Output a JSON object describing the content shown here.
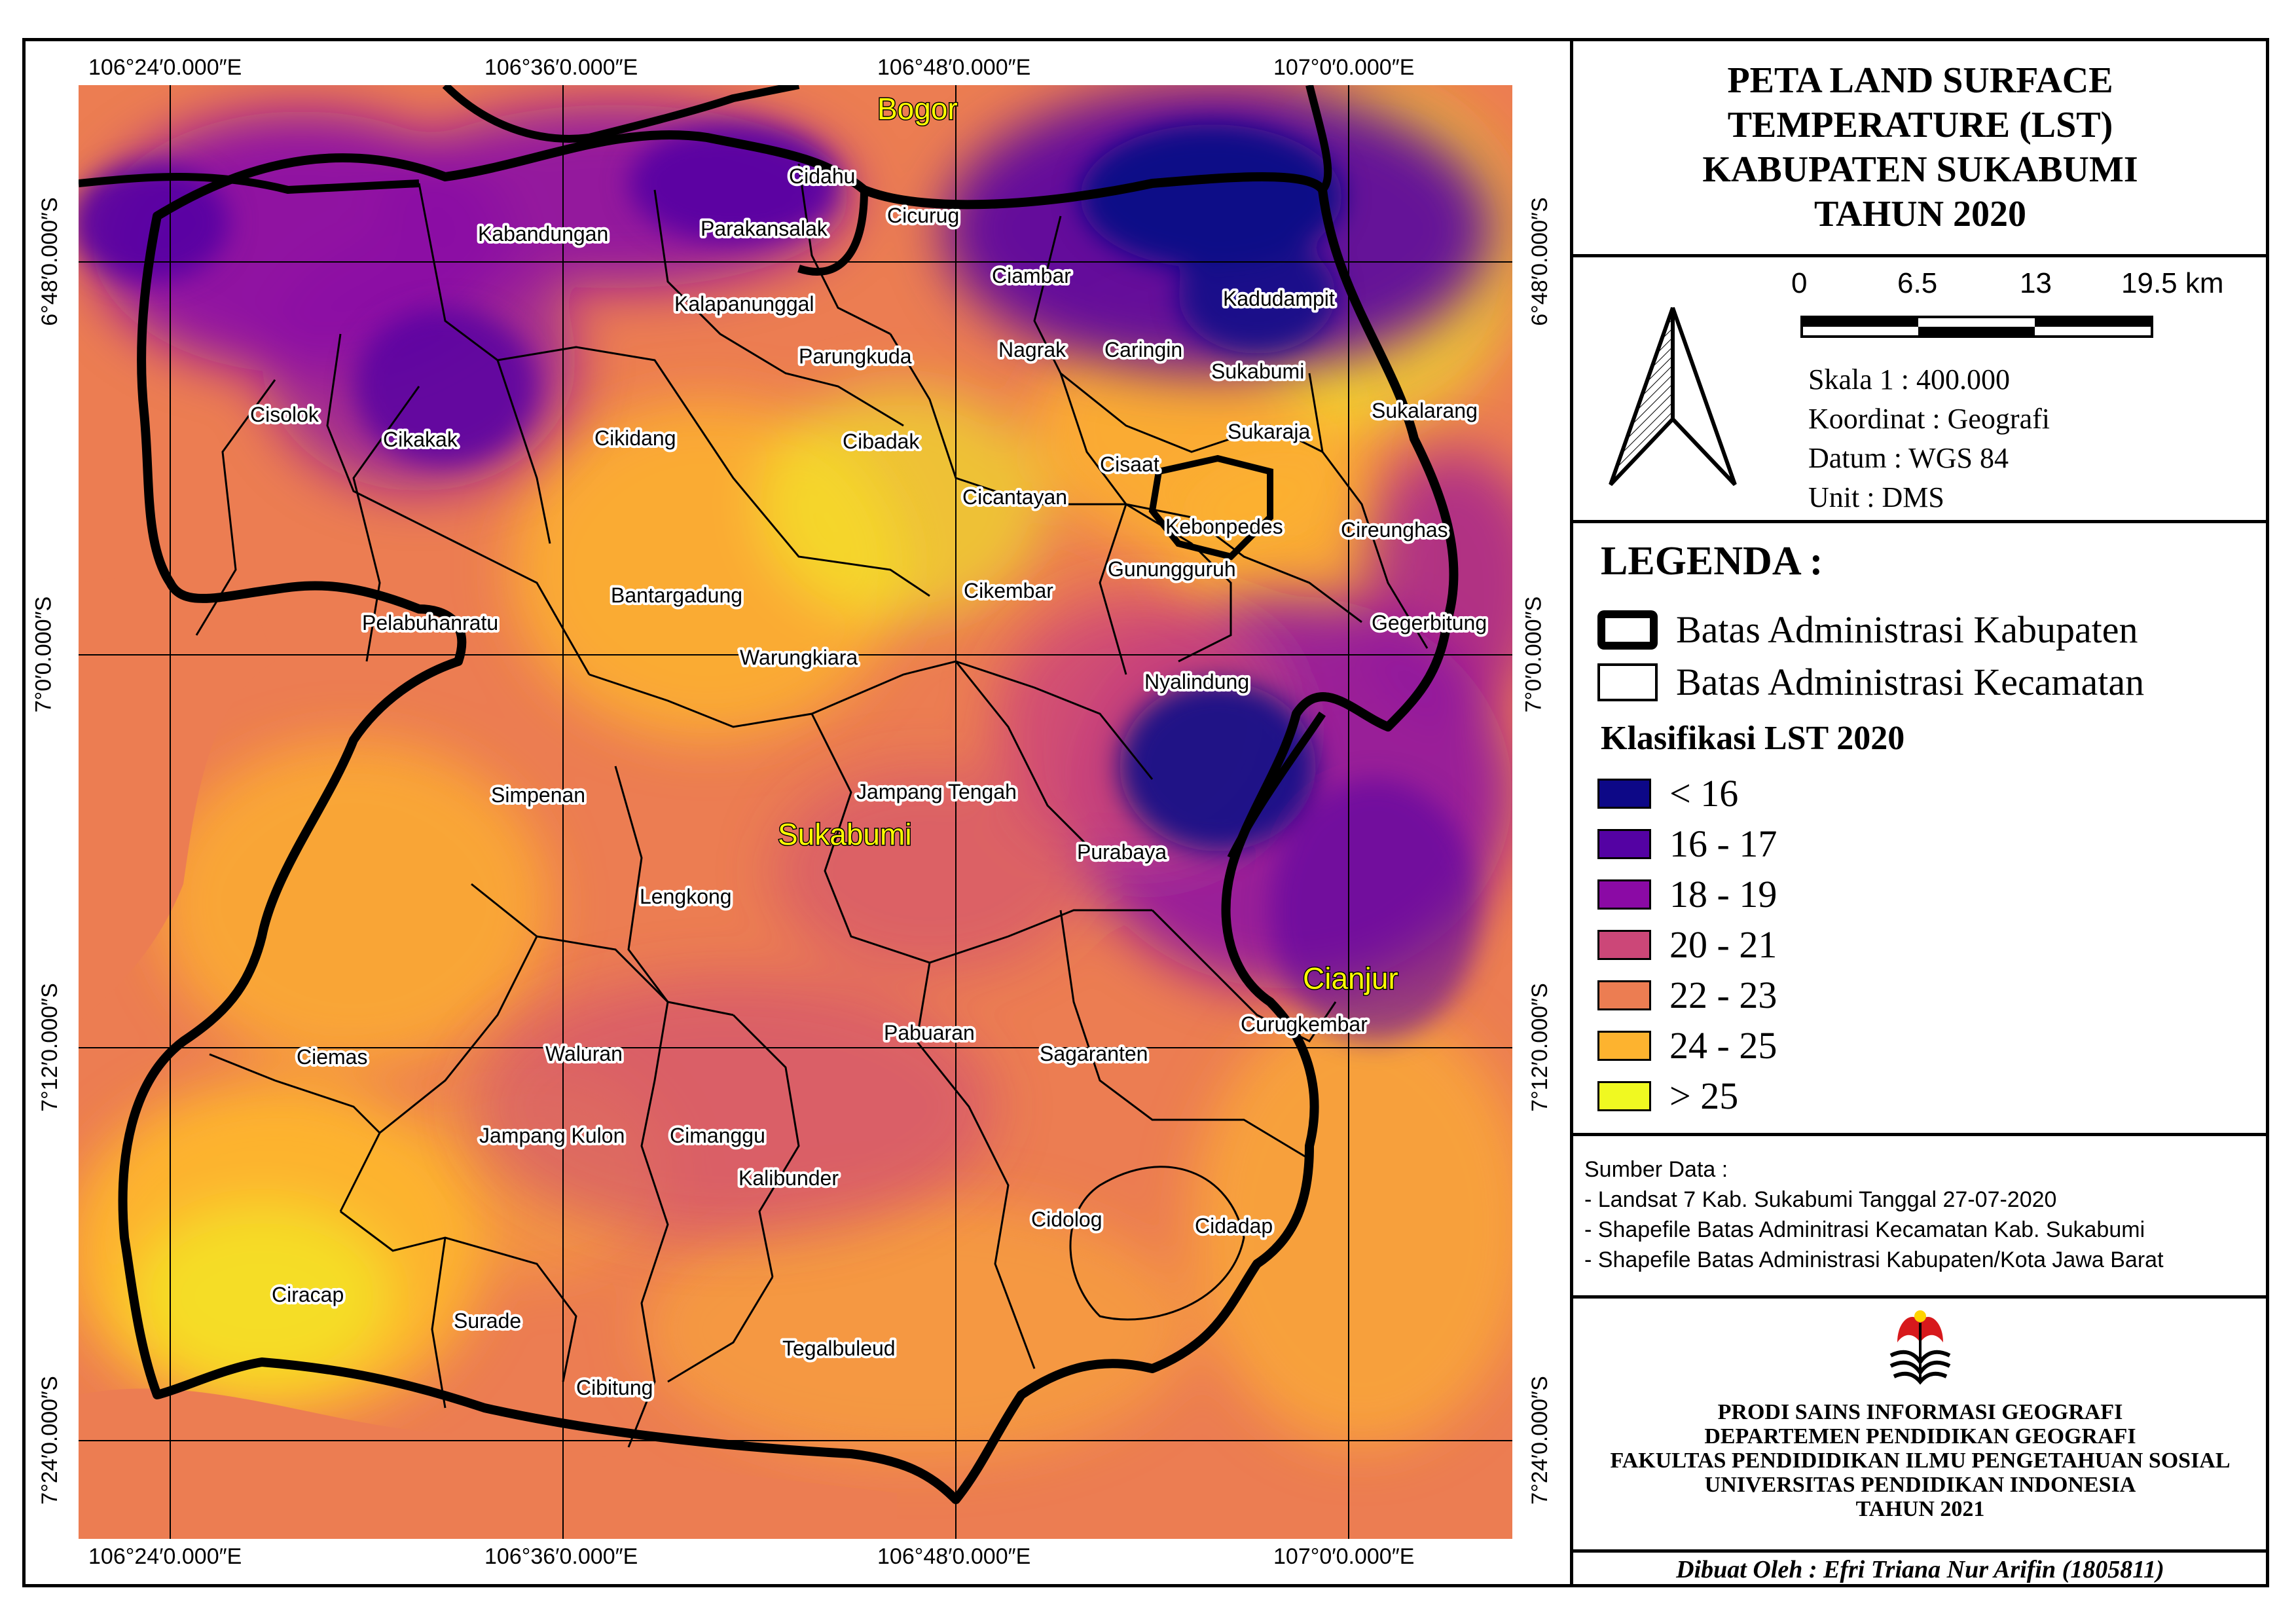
{
  "title": [
    "PETA LAND SURFACE",
    "TEMPERATURE (LST)",
    "KABUPATEN SUKABUMI",
    "TAHUN 2020"
  ],
  "coords": {
    "top": [
      "106°24′0.000″E",
      "106°36′0.000″E",
      "106°48′0.000″E",
      "107°0′0.000″E"
    ],
    "bottom": [
      "106°24′0.000″E",
      "106°36′0.000″E",
      "106°48′0.000″E",
      "107°0′0.000″E"
    ],
    "left": [
      "6°48′0.000″S",
      "7°0′0.000″S",
      "7°12′0.000″S",
      "7°24′0.000″S"
    ],
    "right": [
      "6°48′0.000″S",
      "7°0′0.000″S",
      "7°12′0.000″S",
      "7°24′0.000″S"
    ]
  },
  "scale_bar": {
    "ticks": [
      "0",
      "6.5",
      "13",
      "19.5 km"
    ]
  },
  "map_info": [
    "Skala 1 : 400.000",
    "Koordinat : Geografi",
    "Datum : WGS 84",
    "Unit : DMS"
  ],
  "legend": {
    "title": "LEGENDA :",
    "boundaries": [
      "Batas Administrasi Kabupaten",
      "Batas Administrasi Kecamatan"
    ],
    "lst_title": "Klasifikasi LST 2020",
    "classes": [
      {
        "label": "< 16",
        "color": "#0d0887"
      },
      {
        "label": "16 - 17",
        "color": "#5402a3"
      },
      {
        "label": "18 - 19",
        "color": "#8b0aa5"
      },
      {
        "label": "20 - 21",
        "color": "#cc4778"
      },
      {
        "label": "22 - 23",
        "color": "#ec7d52"
      },
      {
        "label": "24 - 25",
        "color": "#fdb32f"
      },
      {
        "label": "> 25",
        "color": "#f0f921"
      }
    ]
  },
  "sources": {
    "title": "Sumber Data :",
    "items": [
      "- Landsat 7 Kab. Sukabumi Tanggal 27-07-2020",
      "- Shapefile Batas Adminitrasi Kecamatan Kab. Sukabumi",
      "- Shapefile Batas Administrasi Kabupaten/Kota Jawa Barat"
    ]
  },
  "institution": [
    "PRODI SAINS INFORMASI GEOGRAFI",
    "DEPARTEMEN PENDIDIKAN GEOGRAFI",
    "FAKULTAS PENDIDIDIKAN ILMU PENGETAHUAN SOSIAL",
    "UNIVERSITAS PENDIDIKAN INDONESIA",
    "TAHUN 2021"
  ],
  "author": "Dibuat Oleh : Efri Triana Nur Arifin (1805811)",
  "regions": [
    "Bogor",
    "Sukabumi",
    "Cianjur"
  ],
  "districts": [
    "Cidahu",
    "Parakansalak",
    "Cicurug",
    "Kabandungan",
    "Ciambar",
    "Kalapanunggal",
    "Kadudampit",
    "Parungkuda",
    "Nagrak",
    "Caringin",
    "Sukabumi",
    "Cisolok",
    "Cikakak",
    "Cikidang",
    "Cibadak",
    "Sukaraja",
    "Sukalarang",
    "Cisaat",
    "Cicantayan",
    "Kebonpedes",
    "Cireunghas",
    "Gunungguruh",
    "Bantargadung",
    "Cikembar",
    "Pelabuhanratu",
    "Gegerbitung",
    "Warungkiara",
    "Nyalindung",
    "Simpenan",
    "Jampang Tengah",
    "Purabaya",
    "Lengkong",
    "Pabuaran",
    "Curugkembar",
    "Ciemas",
    "Waluran",
    "Sagaranten",
    "Jampang Kulon",
    "Cimanggu",
    "Kalibunder",
    "Cidolog",
    "Cidadap",
    "Ciracap",
    "Surade",
    "Tegalbuleud",
    "Cibitung"
  ]
}
